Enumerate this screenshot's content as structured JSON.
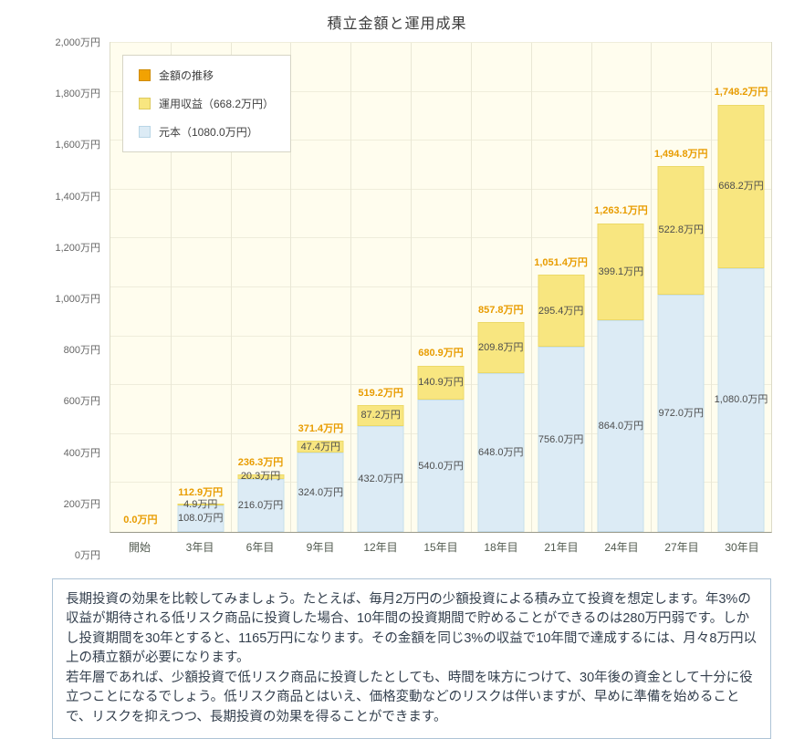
{
  "chart_data": {
    "type": "bar",
    "stacked": true,
    "title": "積立金額と運用成果",
    "categories": [
      "開始",
      "3年目",
      "6年目",
      "9年目",
      "12年目",
      "15年目",
      "18年目",
      "21年目",
      "24年目",
      "27年目",
      "30年目"
    ],
    "series": [
      {
        "name": "元本（1080.0万円）",
        "color": "#dcebf5",
        "border": "#c6dfec",
        "values": [
          0,
          108.0,
          216.0,
          324.0,
          432.0,
          540.0,
          648.0,
          756.0,
          864.0,
          972.0,
          1080.0
        ],
        "value_labels": [
          "",
          "108.0万円",
          "216.0万円",
          "324.0万円",
          "432.0万円",
          "540.0万円",
          "648.0万円",
          "756.0万円",
          "864.0万円",
          "972.0万円",
          "1,080.0万円"
        ]
      },
      {
        "name": "運用収益（668.2万円）",
        "color": "#f8e680",
        "border": "#ecd968",
        "values": [
          0,
          4.9,
          20.3,
          47.4,
          87.2,
          140.9,
          209.8,
          295.4,
          399.1,
          522.8,
          668.2
        ],
        "value_labels": [
          "",
          "4.9万円",
          "20.3万円",
          "47.4万円",
          "87.2万円",
          "140.9万円",
          "209.8万円",
          "295.4万円",
          "399.1万円",
          "522.8万円",
          "668.2万円"
        ]
      }
    ],
    "totals": [
      0.0,
      112.9,
      236.3,
      371.4,
      519.2,
      680.9,
      857.8,
      1051.4,
      1263.1,
      1494.8,
      1748.2
    ],
    "total_labels": [
      "0.0万円",
      "112.9万円",
      "236.3万円",
      "371.4万円",
      "519.2万円",
      "680.9万円",
      "857.8万円",
      "1,051.4万円",
      "1,263.1万円",
      "1,494.8万円",
      "1,748.2万円"
    ],
    "total_label_color": "#e89c00",
    "legend": [
      {
        "label": "金額の推移",
        "color": "#f2a202",
        "border": "#cf8b00",
        "icon": "total-series-swatch"
      },
      {
        "label": "運用収益（668.2万円）",
        "color": "#f8e680",
        "border": "#ddca5e",
        "icon": "profit-series-swatch"
      },
      {
        "label": "元本（1080.0万円）",
        "color": "#dcebf5",
        "border": "#b9d6e6",
        "icon": "principal-series-swatch"
      }
    ],
    "legend_position": "top-left",
    "grid": true,
    "plot_background": "#fffdee",
    "ylim": [
      0,
      2000
    ],
    "ytick_values": [
      0,
      200,
      400,
      600,
      800,
      1000,
      1200,
      1400,
      1600,
      1800,
      2000
    ],
    "ytick_labels": [
      "0万円",
      "200万円",
      "400万円",
      "600万円",
      "800万円",
      "1,000万円",
      "1,200万円",
      "1,400万円",
      "1,600万円",
      "1,800万円",
      "2,000万円"
    ],
    "xlabel": "",
    "ylabel": ""
  },
  "description": {
    "paragraph1": "長期投資の効果を比較してみましょう。たとえば、毎月2万円の少額投資による積み立て投資を想定します。年3%の収益が期待される低リスク商品に投資した場合、10年間の投資期間で貯めることができるのは280万円弱です。しかし投資期間を30年とすると、1165万円になります。その金額を同じ3%の収益で10年間で達成するには、月々8万円以上の積立額が必要になります。",
    "paragraph2": "若年層であれば、少額投資で低リスク商品に投資したとしても、時間を味方につけて、30年後の資金として十分に役立つことになるでしょう。低リスク商品とはいえ、価格変動などのリスクは伴いますが、早めに準備を始めることで、リスクを抑えつつ、長期投資の効果を得ることができます。"
  }
}
